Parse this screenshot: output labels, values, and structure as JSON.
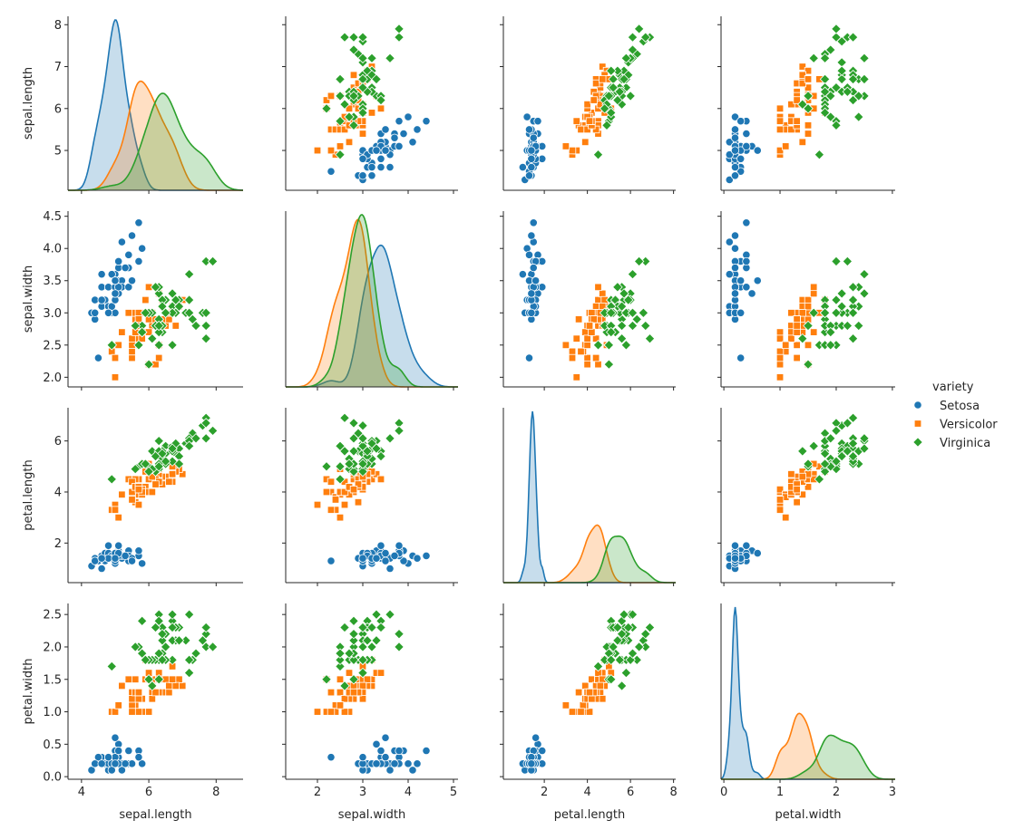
{
  "chart_data": {
    "type": "scatter",
    "variables": [
      "sepal.length",
      "sepal.width",
      "petal.length",
      "petal.width"
    ],
    "ranges": {
      "sepal.length": [
        3.6,
        8.8
      ],
      "sepal.width": [
        1.3,
        5.1
      ],
      "petal.length": [
        0.1,
        8.1
      ],
      "petal.width": [
        -0.05,
        3.05
      ]
    },
    "x_ticks": {
      "sepal.length": [
        4,
        6,
        8
      ],
      "sepal.width": [
        2,
        3,
        4,
        5
      ],
      "petal.length": [
        2,
        4,
        6,
        8
      ],
      "petal.width": [
        0,
        1,
        2,
        3
      ]
    },
    "y_ranges": {
      "sepal.length": [
        4.05,
        8.2
      ],
      "sepal.width": [
        1.85,
        4.58
      ],
      "petal.length": [
        0.45,
        7.3
      ],
      "petal.width": [
        -0.04,
        2.67
      ]
    },
    "y_ticks": {
      "sepal.length": [
        5,
        6,
        7,
        8
      ],
      "sepal.width": [
        "2.0",
        "2.5",
        "3.0",
        "3.5",
        "4.0",
        "4.5"
      ],
      "petal.length": [
        2,
        4,
        6
      ],
      "petal.width": [
        "0.0",
        "0.5",
        "1.0",
        "1.5",
        "2.0",
        "2.5"
      ]
    },
    "diagonal": "kde",
    "legend_title": "variety",
    "legend_position": "right",
    "species": [
      {
        "name": "Setosa",
        "color": "#1f77b4",
        "marker": "circle",
        "points": [
          [
            5.1,
            3.5,
            1.4,
            0.2
          ],
          [
            4.9,
            3.0,
            1.4,
            0.2
          ],
          [
            4.7,
            3.2,
            1.3,
            0.2
          ],
          [
            4.6,
            3.1,
            1.5,
            0.2
          ],
          [
            5.0,
            3.6,
            1.4,
            0.2
          ],
          [
            5.4,
            3.9,
            1.7,
            0.4
          ],
          [
            4.6,
            3.4,
            1.4,
            0.3
          ],
          [
            5.0,
            3.4,
            1.5,
            0.2
          ],
          [
            4.4,
            2.9,
            1.4,
            0.2
          ],
          [
            4.9,
            3.1,
            1.5,
            0.1
          ],
          [
            5.4,
            3.7,
            1.5,
            0.2
          ],
          [
            4.8,
            3.4,
            1.6,
            0.2
          ],
          [
            4.8,
            3.0,
            1.4,
            0.1
          ],
          [
            4.3,
            3.0,
            1.1,
            0.1
          ],
          [
            5.8,
            4.0,
            1.2,
            0.2
          ],
          [
            5.7,
            4.4,
            1.5,
            0.4
          ],
          [
            5.4,
            3.9,
            1.3,
            0.4
          ],
          [
            5.1,
            3.5,
            1.4,
            0.3
          ],
          [
            5.7,
            3.8,
            1.7,
            0.3
          ],
          [
            5.1,
            3.8,
            1.5,
            0.3
          ],
          [
            5.4,
            3.4,
            1.7,
            0.2
          ],
          [
            5.1,
            3.7,
            1.5,
            0.4
          ],
          [
            4.6,
            3.6,
            1.0,
            0.2
          ],
          [
            5.1,
            3.3,
            1.7,
            0.5
          ],
          [
            4.8,
            3.4,
            1.9,
            0.2
          ],
          [
            5.0,
            3.0,
            1.6,
            0.2
          ],
          [
            5.0,
            3.4,
            1.6,
            0.4
          ],
          [
            5.2,
            3.5,
            1.5,
            0.2
          ],
          [
            5.2,
            3.4,
            1.4,
            0.2
          ],
          [
            4.7,
            3.2,
            1.6,
            0.2
          ],
          [
            4.8,
            3.1,
            1.6,
            0.2
          ],
          [
            5.4,
            3.4,
            1.5,
            0.4
          ],
          [
            5.2,
            4.1,
            1.5,
            0.1
          ],
          [
            5.5,
            4.2,
            1.4,
            0.2
          ],
          [
            4.9,
            3.1,
            1.5,
            0.2
          ],
          [
            5.0,
            3.2,
            1.2,
            0.2
          ],
          [
            5.5,
            3.5,
            1.3,
            0.2
          ],
          [
            4.9,
            3.6,
            1.4,
            0.1
          ],
          [
            4.4,
            3.0,
            1.3,
            0.2
          ],
          [
            5.1,
            3.4,
            1.5,
            0.2
          ],
          [
            5.0,
            3.5,
            1.3,
            0.3
          ],
          [
            4.5,
            2.3,
            1.3,
            0.3
          ],
          [
            4.4,
            3.2,
            1.3,
            0.2
          ],
          [
            5.0,
            3.5,
            1.6,
            0.6
          ],
          [
            5.1,
            3.8,
            1.9,
            0.4
          ],
          [
            4.8,
            3.0,
            1.4,
            0.3
          ],
          [
            5.1,
            3.8,
            1.6,
            0.2
          ],
          [
            4.6,
            3.2,
            1.4,
            0.2
          ],
          [
            5.3,
            3.7,
            1.5,
            0.2
          ],
          [
            5.0,
            3.3,
            1.4,
            0.2
          ]
        ]
      },
      {
        "name": "Versicolor",
        "color": "#ff7f0e",
        "marker": "square",
        "points": [
          [
            7.0,
            3.2,
            4.7,
            1.4
          ],
          [
            6.4,
            3.2,
            4.5,
            1.5
          ],
          [
            6.9,
            3.1,
            4.9,
            1.5
          ],
          [
            5.5,
            2.3,
            4.0,
            1.3
          ],
          [
            6.5,
            2.8,
            4.6,
            1.5
          ],
          [
            5.7,
            2.8,
            4.5,
            1.3
          ],
          [
            6.3,
            3.3,
            4.7,
            1.6
          ],
          [
            4.9,
            2.4,
            3.3,
            1.0
          ],
          [
            6.6,
            2.9,
            4.6,
            1.3
          ],
          [
            5.2,
            2.7,
            3.9,
            1.4
          ],
          [
            5.0,
            2.0,
            3.5,
            1.0
          ],
          [
            5.9,
            3.0,
            4.2,
            1.5
          ],
          [
            6.0,
            2.2,
            4.0,
            1.0
          ],
          [
            6.1,
            2.9,
            4.7,
            1.4
          ],
          [
            5.6,
            2.9,
            3.6,
            1.3
          ],
          [
            6.7,
            3.1,
            4.4,
            1.4
          ],
          [
            5.6,
            3.0,
            4.5,
            1.5
          ],
          [
            5.8,
            2.7,
            4.1,
            1.0
          ],
          [
            6.2,
            2.2,
            4.5,
            1.5
          ],
          [
            5.6,
            2.5,
            3.9,
            1.1
          ],
          [
            5.9,
            3.2,
            4.8,
            1.8
          ],
          [
            6.1,
            2.8,
            4.0,
            1.3
          ],
          [
            6.3,
            2.5,
            4.9,
            1.5
          ],
          [
            6.1,
            2.8,
            4.7,
            1.2
          ],
          [
            6.4,
            2.9,
            4.3,
            1.3
          ],
          [
            6.6,
            3.0,
            4.4,
            1.4
          ],
          [
            6.8,
            2.8,
            4.8,
            1.4
          ],
          [
            6.7,
            3.0,
            5.0,
            1.7
          ],
          [
            6.0,
            2.9,
            4.5,
            1.5
          ],
          [
            5.7,
            2.6,
            3.5,
            1.0
          ],
          [
            5.5,
            2.4,
            3.8,
            1.1
          ],
          [
            5.5,
            2.4,
            3.7,
            1.0
          ],
          [
            5.8,
            2.7,
            3.9,
            1.2
          ],
          [
            6.0,
            2.7,
            5.1,
            1.6
          ],
          [
            5.4,
            3.0,
            4.5,
            1.5
          ],
          [
            6.0,
            3.4,
            4.5,
            1.6
          ],
          [
            6.7,
            3.1,
            4.7,
            1.5
          ],
          [
            6.3,
            2.3,
            4.4,
            1.3
          ],
          [
            5.6,
            3.0,
            4.1,
            1.3
          ],
          [
            5.5,
            2.5,
            4.0,
            1.3
          ],
          [
            5.5,
            2.6,
            4.4,
            1.2
          ],
          [
            6.1,
            3.0,
            4.6,
            1.4
          ],
          [
            5.8,
            2.6,
            4.0,
            1.2
          ],
          [
            5.0,
            2.3,
            3.3,
            1.0
          ],
          [
            5.6,
            2.7,
            4.2,
            1.3
          ],
          [
            5.7,
            3.0,
            4.2,
            1.2
          ],
          [
            5.7,
            2.9,
            4.2,
            1.3
          ],
          [
            6.2,
            2.9,
            4.3,
            1.3
          ],
          [
            5.1,
            2.5,
            3.0,
            1.1
          ],
          [
            5.7,
            2.8,
            4.1,
            1.3
          ]
        ]
      },
      {
        "name": "Virginica",
        "color": "#2ca02c",
        "marker": "diamond",
        "points": [
          [
            6.3,
            3.3,
            6.0,
            2.5
          ],
          [
            5.8,
            2.7,
            5.1,
            1.9
          ],
          [
            7.1,
            3.0,
            5.9,
            2.1
          ],
          [
            6.3,
            2.9,
            5.6,
            1.8
          ],
          [
            6.5,
            3.0,
            5.8,
            2.2
          ],
          [
            7.6,
            3.0,
            6.6,
            2.1
          ],
          [
            4.9,
            2.5,
            4.5,
            1.7
          ],
          [
            7.3,
            2.9,
            6.3,
            1.8
          ],
          [
            6.7,
            2.5,
            5.8,
            1.8
          ],
          [
            7.2,
            3.6,
            6.1,
            2.5
          ],
          [
            6.5,
            3.2,
            5.1,
            2.0
          ],
          [
            6.4,
            2.7,
            5.3,
            1.9
          ],
          [
            6.8,
            3.0,
            5.5,
            2.1
          ],
          [
            5.7,
            2.5,
            5.0,
            2.0
          ],
          [
            5.8,
            2.8,
            5.1,
            2.4
          ],
          [
            6.4,
            3.2,
            5.3,
            2.3
          ],
          [
            6.5,
            3.0,
            5.5,
            1.8
          ],
          [
            7.7,
            3.8,
            6.7,
            2.2
          ],
          [
            7.7,
            2.6,
            6.9,
            2.3
          ],
          [
            6.0,
            2.2,
            5.0,
            1.5
          ],
          [
            6.9,
            3.2,
            5.7,
            2.3
          ],
          [
            5.6,
            2.8,
            4.9,
            2.0
          ],
          [
            7.7,
            2.8,
            6.7,
            2.0
          ],
          [
            6.3,
            2.7,
            4.9,
            1.8
          ],
          [
            6.7,
            3.3,
            5.7,
            2.1
          ],
          [
            7.2,
            3.2,
            6.0,
            1.8
          ],
          [
            6.2,
            2.8,
            4.8,
            1.8
          ],
          [
            6.1,
            3.0,
            4.9,
            1.8
          ],
          [
            6.4,
            2.8,
            5.6,
            2.1
          ],
          [
            7.2,
            3.0,
            5.8,
            1.6
          ],
          [
            7.4,
            2.8,
            6.1,
            1.9
          ],
          [
            7.9,
            3.8,
            6.4,
            2.0
          ],
          [
            6.4,
            2.8,
            5.6,
            2.2
          ],
          [
            6.3,
            2.8,
            5.1,
            1.5
          ],
          [
            6.1,
            2.6,
            5.6,
            1.4
          ],
          [
            7.7,
            3.0,
            6.1,
            2.3
          ],
          [
            6.3,
            3.4,
            5.6,
            2.4
          ],
          [
            6.4,
            3.1,
            5.5,
            1.8
          ],
          [
            6.0,
            3.0,
            4.8,
            1.8
          ],
          [
            6.9,
            3.1,
            5.4,
            2.1
          ],
          [
            6.7,
            3.1,
            5.6,
            2.4
          ],
          [
            6.9,
            3.1,
            5.1,
            2.3
          ],
          [
            5.8,
            2.7,
            5.1,
            1.9
          ],
          [
            6.8,
            3.2,
            5.9,
            2.3
          ],
          [
            6.7,
            3.3,
            5.7,
            2.5
          ],
          [
            6.7,
            3.0,
            5.2,
            2.3
          ],
          [
            6.3,
            2.5,
            5.0,
            1.9
          ],
          [
            6.5,
            3.0,
            5.2,
            2.0
          ],
          [
            6.2,
            3.4,
            5.4,
            2.3
          ],
          [
            5.9,
            3.0,
            5.1,
            1.8
          ]
        ]
      }
    ]
  }
}
